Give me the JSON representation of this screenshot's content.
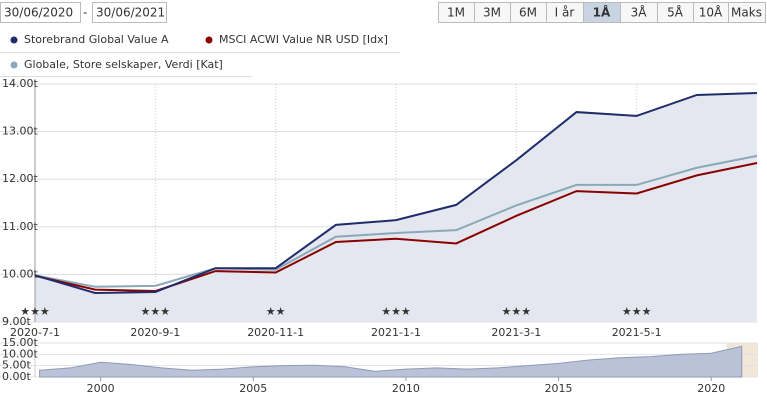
{
  "controls": {
    "date_from": "30/06/2020",
    "separator": "-",
    "date_to": "30/06/2021",
    "buttons": [
      "1M",
      "3M",
      "6M",
      "I år",
      "1Å",
      "3Å",
      "5Å",
      "10Å",
      "Maks"
    ],
    "selected_button": 4
  },
  "chart_data": [
    {
      "type": "line",
      "categories": [
        "2020-7-1",
        null,
        "2020-9-1",
        null,
        "2020-11-1",
        null,
        "2021-1-1",
        null,
        "2021-3-1",
        null,
        "2021-5-1",
        null,
        null
      ],
      "series": [
        {
          "name": "Storebrand Global Value A",
          "color": "#1f2d6b",
          "area": true,
          "values": [
            9980,
            9610,
            9630,
            10130,
            10130,
            11040,
            11140,
            11460,
            12400,
            13410,
            13330,
            13770,
            13810
          ]
        },
        {
          "name": "MSCI ACWI Value NR USD [Idx]",
          "color": "#8b0000",
          "values": [
            9970,
            9680,
            9650,
            10070,
            10040,
            10680,
            10750,
            10650,
            11230,
            11750,
            11700,
            12080,
            12340
          ]
        },
        {
          "name": "Globale, Store selskaper, Verdi [Kat]",
          "color": "#8aa8b8",
          "values": [
            9980,
            9740,
            9760,
            10130,
            10100,
            10790,
            10870,
            10930,
            11450,
            11880,
            11880,
            12240,
            12490
          ]
        }
      ],
      "ratings": [
        "★★★",
        null,
        "★★★",
        null,
        "★★",
        null,
        "★★★",
        null,
        "★★★",
        null,
        "★★★",
        null,
        null
      ],
      "ylim": [
        9000,
        14000
      ],
      "yticks": [
        {
          "value": 9000,
          "label": "9.00t"
        },
        {
          "value": 10000,
          "label": "10.00t"
        },
        {
          "value": 11000,
          "label": "11.00t"
        },
        {
          "value": 12000,
          "label": "12.00t"
        },
        {
          "value": 13000,
          "label": "13.00t"
        },
        {
          "value": 14000,
          "label": "14.00t"
        }
      ],
      "grid": true,
      "area_color": "#e4e7ef"
    },
    {
      "type": "area",
      "color": "#8f9ab8",
      "area_color": "#b9c2d6",
      "x": [
        1998,
        1999,
        2000,
        2001,
        2002,
        2003,
        2004,
        2005,
        2006,
        2007,
        2008,
        2009,
        2010,
        2011,
        2012,
        2013,
        2014,
        2015,
        2016,
        2017,
        2018,
        2019,
        2020,
        2021
      ],
      "values": [
        3000,
        4000,
        6500,
        5500,
        4000,
        3000,
        3500,
        4500,
        5000,
        5200,
        4500,
        2500,
        3500,
        4000,
        3500,
        4000,
        5000,
        6000,
        7500,
        8500,
        9000,
        10000,
        10500,
        13500
      ],
      "xlim": [
        1997.85,
        2021.5
      ],
      "xticks": [
        2000,
        2005,
        2010,
        2015,
        2020
      ],
      "ylim": [
        0,
        15000
      ],
      "yticks": [
        {
          "value": 0,
          "label": "0.00t"
        },
        {
          "value": 5000,
          "label": "5.00t"
        },
        {
          "value": 10000,
          "label": "10.00t"
        },
        {
          "value": 15000,
          "label": "15.00t"
        }
      ],
      "selection": [
        2020.5,
        2021.5
      ],
      "selection_color": "#f2e6d6"
    }
  ]
}
